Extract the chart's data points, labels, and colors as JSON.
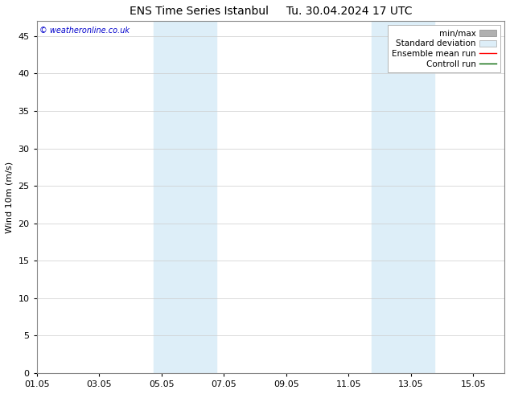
{
  "title_left": "ENS Time Series Istanbul",
  "title_right": "Tu. 30.04.2024 17 UTC",
  "ylabel": "Wind 10m (m/s)",
  "ylim": [
    0,
    47
  ],
  "yticks": [
    0,
    5,
    10,
    15,
    20,
    25,
    30,
    35,
    40,
    45
  ],
  "xtick_labels": [
    "01.05",
    "03.05",
    "05.05",
    "07.05",
    "09.05",
    "11.05",
    "13.05",
    "15.05"
  ],
  "xtick_positions": [
    0,
    2,
    4,
    6,
    8,
    10,
    12,
    14
  ],
  "xlim": [
    0,
    15
  ],
  "shaded_bands": [
    {
      "x_start": 3.75,
      "x_end": 5.75
    },
    {
      "x_start": 10.75,
      "x_end": 12.75
    }
  ],
  "legend_labels": [
    "min/max",
    "Standard deviation",
    "Ensemble mean run",
    "Controll run"
  ],
  "watermark": "© weatheronline.co.uk",
  "watermark_color": "#0000cc",
  "bg_color": "#ffffff",
  "plot_bg_color": "#ffffff",
  "band_color": "#ddeef8",
  "spine_color": "#888888",
  "grid_color": "#cccccc",
  "title_fontsize": 10,
  "label_fontsize": 8,
  "tick_fontsize": 8,
  "legend_fontsize": 7.5
}
